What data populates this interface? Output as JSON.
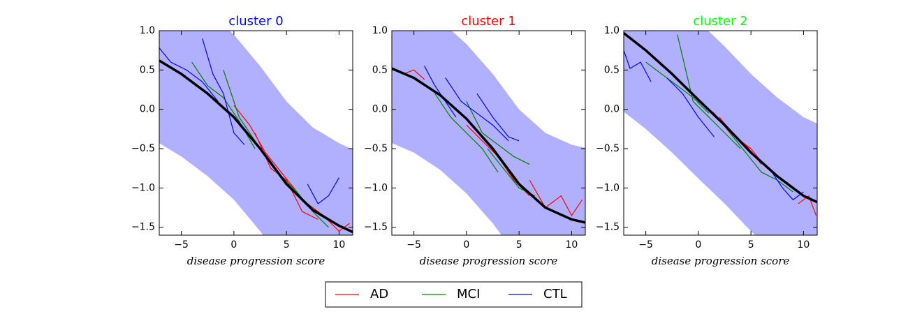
{
  "chart_data": [
    {
      "type": "line",
      "title": "cluster 0",
      "title_color": "#0000ff",
      "xlabel": "disease progression score",
      "xlim": [
        -7.1,
        11.3
      ],
      "ylim": [
        -1.6,
        1.0
      ],
      "xticks": [
        {
          "value": -5,
          "label": "−5"
        },
        0,
        5,
        10
      ],
      "yticks": [
        {
          "value": 1.0,
          "label": "1.0"
        },
        {
          "value": 0.5,
          "label": "0.5"
        },
        {
          "value": 0.0,
          "label": "0.0"
        },
        {
          "value": -0.5,
          "label": "−0.5"
        },
        {
          "value": -1.0,
          "label": "−1.0"
        },
        {
          "value": -1.5,
          "label": "−1.5"
        }
      ],
      "fit": {
        "color": "#000000",
        "x": [
          -7.1,
          -5,
          -2.5,
          0,
          2.5,
          5,
          7.5,
          10,
          11.3
        ],
        "values": [
          0.62,
          0.45,
          0.2,
          -0.1,
          -0.5,
          -0.95,
          -1.28,
          -1.48,
          -1.56
        ]
      },
      "band": {
        "color": "#b0b0ff",
        "x": [
          -7.1,
          -5,
          -2.5,
          0,
          2.5,
          5,
          7.5,
          10,
          11.3
        ],
        "lower": [
          -0.43,
          -0.6,
          -0.85,
          -1.15,
          -1.55,
          -2.0,
          -2.33,
          -2.53,
          -2.61
        ],
        "upper": [
          1.67,
          1.5,
          1.25,
          0.95,
          0.55,
          0.1,
          -0.23,
          -0.43,
          -0.51
        ]
      },
      "series": [
        {
          "group": 0,
          "x": [
            0,
            1.5,
            3,
            4.5,
            6
          ],
          "values": [
            0.05,
            -0.2,
            -0.55,
            -0.8,
            -1.05
          ]
        },
        {
          "group": 0,
          "x": [
            2,
            3.5,
            5,
            6.5,
            8
          ],
          "values": [
            -0.3,
            -0.75,
            -0.9,
            -1.3,
            -1.4
          ]
        },
        {
          "group": 0,
          "x": [
            7,
            8.5,
            10,
            11
          ],
          "values": [
            -1.2,
            -1.35,
            -1.55,
            -1.45
          ]
        },
        {
          "group": 1,
          "x": [
            -4,
            -2.5,
            -1,
            0.5,
            2
          ],
          "values": [
            0.6,
            0.3,
            0.15,
            -0.15,
            -0.5
          ]
        },
        {
          "group": 1,
          "x": [
            -1,
            0.5,
            2,
            3.5,
            5
          ],
          "values": [
            0.5,
            -0.1,
            -0.4,
            -0.7,
            -0.95
          ]
        },
        {
          "group": 1,
          "x": [
            3,
            4.5,
            6,
            7.5,
            9
          ],
          "values": [
            -0.6,
            -0.85,
            -1.05,
            -1.3,
            -1.5
          ]
        },
        {
          "group": 2,
          "x": [
            -7.1,
            -6,
            -4.5,
            -3,
            -1.5
          ],
          "values": [
            0.78,
            0.6,
            0.5,
            0.35,
            0.1
          ]
        },
        {
          "group": 2,
          "x": [
            -3,
            -2,
            -1,
            0,
            1
          ],
          "values": [
            0.9,
            0.45,
            0.2,
            -0.3,
            -0.45
          ]
        },
        {
          "group": 2,
          "x": [
            7,
            8,
            9,
            10
          ],
          "values": [
            -0.95,
            -1.2,
            -1.1,
            -0.87
          ]
        }
      ]
    },
    {
      "type": "line",
      "title": "cluster 1",
      "title_color": "#ff0000",
      "xlabel": "disease progression score",
      "xlim": [
        -7.1,
        11.3
      ],
      "ylim": [
        -1.6,
        1.0
      ],
      "xticks": [
        {
          "value": -5,
          "label": "−5"
        },
        0,
        5,
        10
      ],
      "yticks": [
        {
          "value": 1.0,
          "label": "1.0"
        },
        {
          "value": 0.5,
          "label": "0.5"
        },
        {
          "value": 0.0,
          "label": "0.0"
        },
        {
          "value": -0.5,
          "label": "−0.5"
        },
        {
          "value": -1.0,
          "label": "−1.0"
        },
        {
          "value": -1.5,
          "label": "−1.5"
        }
      ],
      "fit": {
        "color": "#000000",
        "x": [
          -7.1,
          -5,
          -2.5,
          0,
          2.5,
          5,
          7.5,
          10,
          11.3
        ],
        "values": [
          0.52,
          0.4,
          0.18,
          -0.12,
          -0.5,
          -0.95,
          -1.25,
          -1.4,
          -1.44
        ]
      },
      "band": {
        "color": "#b0b0ff",
        "x": [
          -7.1,
          -5,
          -2.5,
          0,
          2.5,
          5,
          7.5,
          10,
          11.3
        ],
        "lower": [
          -0.43,
          -0.55,
          -0.77,
          -1.07,
          -1.45,
          -1.9,
          -2.2,
          -2.35,
          -2.39
        ],
        "upper": [
          1.47,
          1.35,
          1.13,
          0.83,
          0.45,
          0.0,
          -0.3,
          -0.45,
          -0.49
        ]
      },
      "series": [
        {
          "group": 0,
          "x": [
            -6,
            -5,
            -4
          ],
          "values": [
            0.45,
            0.5,
            0.38
          ]
        },
        {
          "group": 0,
          "x": [
            0,
            1.5,
            3,
            4.5,
            6
          ],
          "values": [
            -0.2,
            -0.4,
            -0.6,
            -0.9,
            -1.1
          ]
        },
        {
          "group": 0,
          "x": [
            6,
            7.5,
            9,
            10,
            11
          ],
          "values": [
            -0.9,
            -1.25,
            -1.1,
            -1.35,
            -1.15
          ]
        },
        {
          "group": 1,
          "x": [
            -3,
            -1.5,
            0,
            1.5,
            3
          ],
          "values": [
            0.2,
            -0.1,
            -0.3,
            -0.5,
            -0.8
          ]
        },
        {
          "group": 1,
          "x": [
            0,
            1.5,
            3,
            4.5,
            6
          ],
          "values": [
            0.1,
            -0.3,
            -0.45,
            -0.6,
            -0.7
          ]
        },
        {
          "group": 1,
          "x": [
            2,
            3.5,
            5,
            6.5
          ],
          "values": [
            -0.5,
            -0.75,
            -1,
            -1.1
          ]
        },
        {
          "group": 2,
          "x": [
            -4,
            -3,
            -2,
            -1
          ],
          "values": [
            0.55,
            0.3,
            0.1,
            -0.1
          ]
        },
        {
          "group": 2,
          "x": [
            -2,
            -0.5,
            1,
            2.5,
            4
          ],
          "values": [
            0.4,
            0.1,
            -0.05,
            -0.2,
            -0.4
          ]
        },
        {
          "group": 2,
          "x": [
            1,
            2.5,
            4,
            5
          ],
          "values": [
            0.2,
            -0.1,
            -0.35,
            -0.4
          ]
        }
      ]
    },
    {
      "type": "line",
      "title": "cluster 2",
      "title_color": "#00ff00",
      "xlabel": "disease progression score",
      "xlim": [
        -7.1,
        11.3
      ],
      "ylim": [
        -1.6,
        1.0
      ],
      "xticks": [
        {
          "value": -5,
          "label": "−5"
        },
        0,
        5,
        10
      ],
      "yticks": [
        {
          "value": 1.0,
          "label": "1.0"
        },
        {
          "value": 0.5,
          "label": "0.5"
        },
        {
          "value": 0.0,
          "label": "0.0"
        },
        {
          "value": -0.5,
          "label": "−0.5"
        },
        {
          "value": -1.0,
          "label": "−1.0"
        },
        {
          "value": -1.5,
          "label": "−1.5"
        }
      ],
      "fit": {
        "color": "#000000",
        "x": [
          -7.1,
          -5,
          -2.5,
          0,
          2.5,
          5,
          7.5,
          10,
          11.3
        ],
        "values": [
          0.97,
          0.75,
          0.45,
          0.12,
          -0.2,
          -0.55,
          -0.85,
          -1.1,
          -1.18
        ]
      },
      "band": {
        "color": "#b0b0ff",
        "x": [
          -7.1,
          -5,
          -2.5,
          0,
          2.5,
          5,
          7.5,
          10,
          11.3
        ],
        "lower": [
          -0.03,
          -0.25,
          -0.55,
          -0.88,
          -1.2,
          -1.55,
          -1.85,
          -2.1,
          -2.18
        ],
        "upper": [
          1.97,
          1.75,
          1.45,
          1.12,
          0.8,
          0.45,
          0.15,
          -0.1,
          -0.18
        ]
      },
      "series": [
        {
          "group": 0,
          "x": [
            0,
            1.5,
            3,
            4.5,
            6
          ],
          "values": [
            0.1,
            -0.05,
            -0.3,
            -0.45,
            -0.7
          ]
        },
        {
          "group": 0,
          "x": [
            2,
            3.5,
            5,
            6.5
          ],
          "values": [
            -0.1,
            -0.35,
            -0.5,
            -0.75
          ]
        },
        {
          "group": 0,
          "x": [
            9.5,
            10.5,
            11.2
          ],
          "values": [
            -1.2,
            -1.1,
            -1.35
          ]
        },
        {
          "group": 1,
          "x": [
            -5,
            -3.5,
            -2,
            -0.5,
            1
          ],
          "values": [
            0.6,
            0.45,
            0.3,
            0.15,
            -0.05
          ]
        },
        {
          "group": 1,
          "x": [
            -2,
            -0.5,
            1,
            2.5,
            4
          ],
          "values": [
            0.95,
            0.1,
            -0.1,
            -0.3,
            -0.5
          ]
        },
        {
          "group": 1,
          "x": [
            3,
            4.5,
            6,
            7.5,
            9
          ],
          "values": [
            -0.3,
            -0.55,
            -0.8,
            -0.9,
            -1.05
          ]
        },
        {
          "group": 2,
          "x": [
            -7.1,
            -6.5,
            -5.5,
            -4.5
          ],
          "values": [
            0.75,
            0.52,
            0.6,
            0.35
          ]
        },
        {
          "group": 2,
          "x": [
            -3,
            -1.5,
            0,
            1.5
          ],
          "values": [
            0.4,
            0.2,
            -0.1,
            -0.35
          ]
        },
        {
          "group": 2,
          "x": [
            7,
            8,
            9,
            10
          ],
          "values": [
            -0.8,
            -1.0,
            -1.15,
            -1.05
          ]
        }
      ]
    }
  ],
  "legend": [
    {
      "name": "AD",
      "color": "#ff0000"
    },
    {
      "name": "MCI",
      "color": "#008000"
    },
    {
      "name": "CTL",
      "color": "#0000ff"
    }
  ]
}
